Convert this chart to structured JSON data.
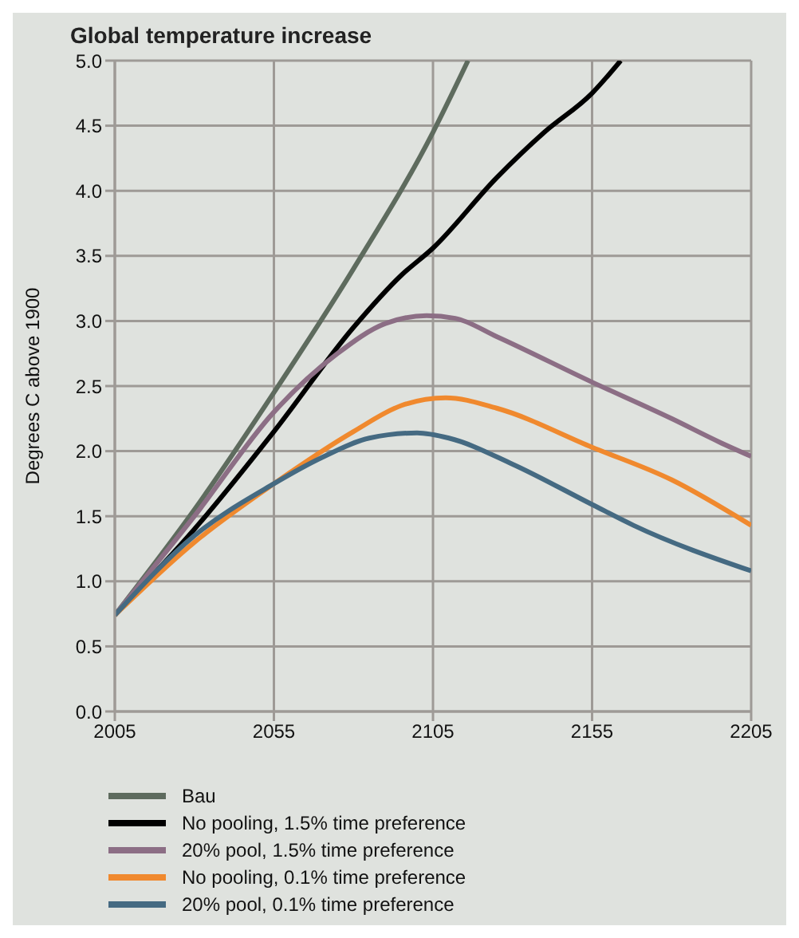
{
  "chart_data": {
    "type": "line",
    "title": "Global temperature increase",
    "ylabel": "Degrees C above 1900",
    "xlim": [
      2005,
      2205
    ],
    "xticks": [
      2005,
      2055,
      2105,
      2155,
      2205
    ],
    "ylim": [
      0,
      5
    ],
    "yticks": [
      {
        "value": 0,
        "label": "0.0"
      },
      {
        "value": 0.5,
        "label": "0.5"
      },
      {
        "value": 1,
        "label": "1.0"
      },
      {
        "value": 1.5,
        "label": "1.5"
      },
      {
        "value": 2,
        "label": "2.0"
      },
      {
        "value": 2.5,
        "label": "2.5"
      },
      {
        "value": 3,
        "label": "3.0"
      },
      {
        "value": 3.5,
        "label": "3.5"
      },
      {
        "value": 4,
        "label": "4.0"
      },
      {
        "value": 4.5,
        "label": "4.5"
      },
      {
        "value": 5,
        "label": "5.0"
      }
    ],
    "grid": true,
    "legend": "bottom",
    "marker": "none",
    "line_style": "solid",
    "series": [
      {
        "name": "Bau",
        "color": "#5e6b5e",
        "x": [
          2005,
          2030,
          2055,
          2080,
          2105,
          2116
        ],
        "values": [
          0.74,
          1.55,
          2.45,
          3.4,
          4.45,
          5.0
        ]
      },
      {
        "name": "No pooling, 1.5% time preference",
        "color": "#000000",
        "x": [
          2005,
          2030,
          2055,
          2080,
          2095,
          2105,
          2125,
          2140,
          2155,
          2164
        ],
        "values": [
          0.74,
          1.4,
          2.15,
          2.95,
          3.35,
          3.56,
          4.1,
          4.45,
          4.75,
          5.0
        ]
      },
      {
        "name": "20% pool, 1.5% time preference",
        "color": "#8c6e85",
        "x": [
          2005,
          2030,
          2055,
          2075,
          2090,
          2103,
          2112,
          2125,
          2155,
          2180,
          2195,
          2205
        ],
        "values": [
          0.74,
          1.5,
          2.3,
          2.75,
          2.98,
          3.04,
          3.02,
          2.88,
          2.53,
          2.25,
          2.07,
          1.96
        ]
      },
      {
        "name": "No pooling, 0.1% time preference",
        "color": "#f0892e",
        "x": [
          2005,
          2030,
          2055,
          2080,
          2095,
          2109,
          2125,
          2155,
          2180,
          2205
        ],
        "values": [
          0.74,
          1.3,
          1.75,
          2.15,
          2.35,
          2.41,
          2.33,
          2.03,
          1.78,
          1.43
        ]
      },
      {
        "name": "20% pool, 0.1% time preference",
        "color": "#456a82",
        "x": [
          2005,
          2030,
          2055,
          2070,
          2085,
          2100,
          2110,
          2130,
          2155,
          2168,
          2205
        ],
        "values": [
          0.74,
          1.35,
          1.75,
          1.95,
          2.1,
          2.14,
          2.1,
          1.9,
          1.59,
          1.43,
          1.08
        ]
      }
    ]
  }
}
